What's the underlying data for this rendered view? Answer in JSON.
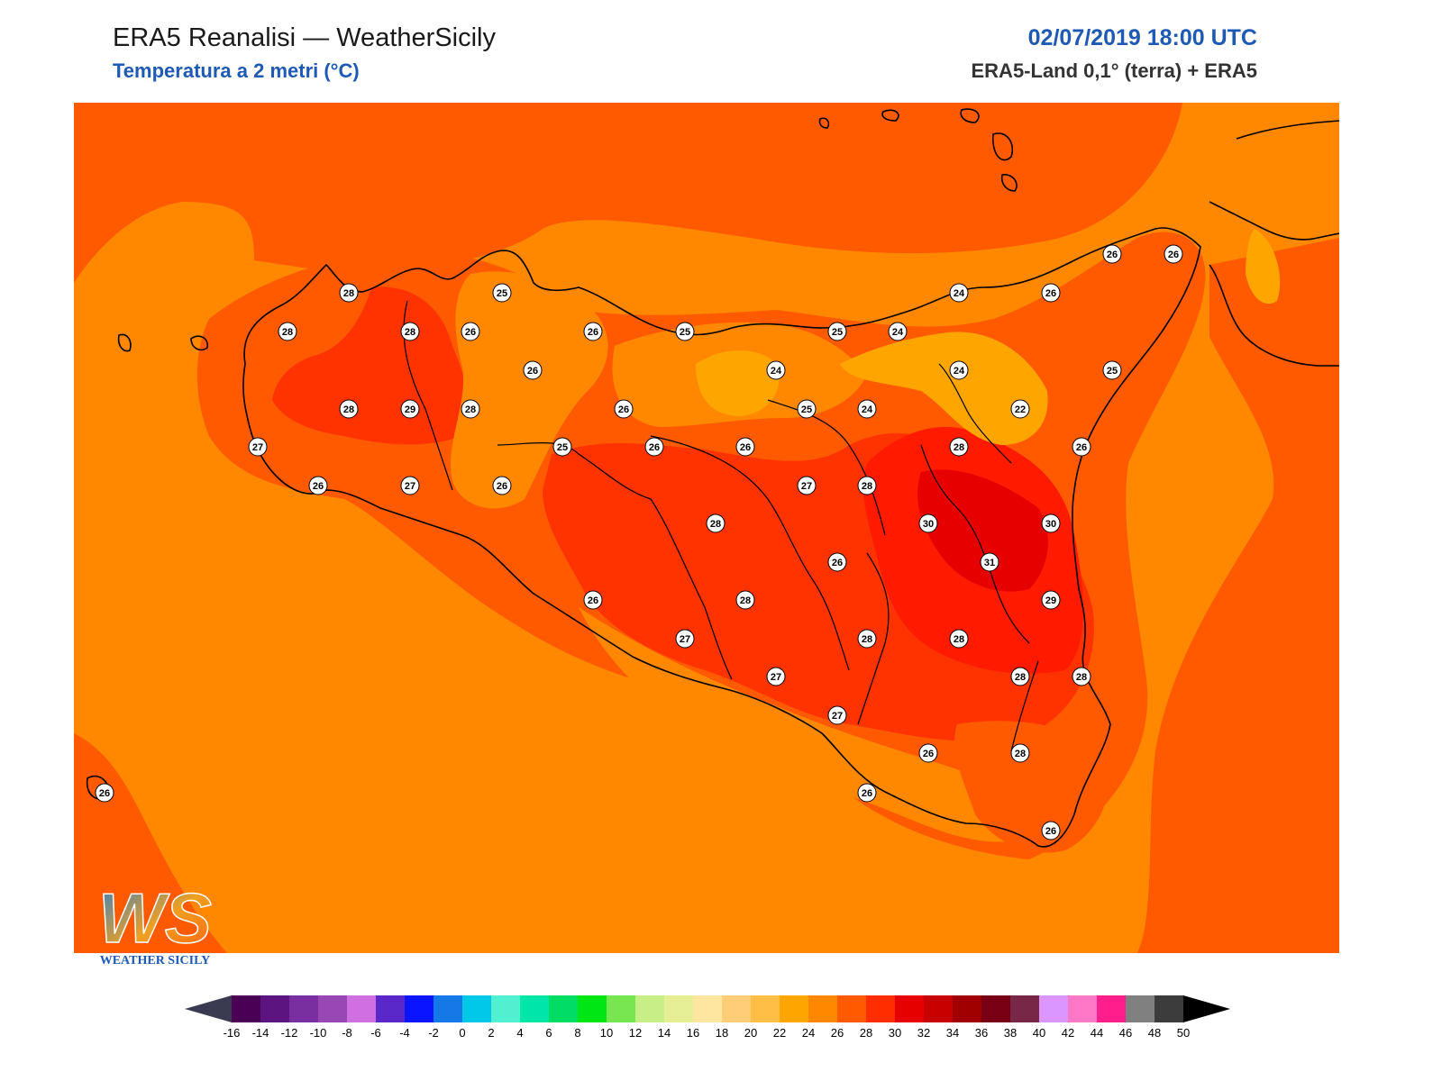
{
  "header": {
    "title": "ERA5 Reanalisi — WeatherSicily",
    "subtitle": "Temperatura a 2 metri (°C)",
    "datetime": "02/07/2019 18:00 UTC",
    "source": "ERA5-Land 0,1° (terra) + ERA5"
  },
  "logo": {
    "letters": "WS",
    "text": "WEATHER SICILY"
  },
  "colors": {
    "t22": "#ffa500",
    "t24": "#ff8800",
    "t26": "#ff5a00",
    "t28": "#ff3300",
    "t30": "#ff1a00",
    "t32": "#e60000",
    "coast": "#000000"
  },
  "stations": [
    {
      "v": "28"
    },
    {
      "v": "25"
    },
    {
      "v": "28"
    },
    {
      "v": "28"
    },
    {
      "v": "26"
    },
    {
      "v": "26"
    },
    {
      "v": "25"
    },
    {
      "v": "26"
    },
    {
      "v": "28"
    },
    {
      "v": "29"
    },
    {
      "v": "28"
    },
    {
      "v": "26"
    },
    {
      "v": "24"
    },
    {
      "v": "25"
    },
    {
      "v": "24"
    },
    {
      "v": "24"
    },
    {
      "v": "26"
    },
    {
      "v": "26"
    },
    {
      "v": "26"
    },
    {
      "v": "24"
    },
    {
      "v": "25"
    },
    {
      "v": "27"
    },
    {
      "v": "25"
    },
    {
      "v": "26"
    },
    {
      "v": "26"
    },
    {
      "v": "25"
    },
    {
      "v": "24"
    },
    {
      "v": "22"
    },
    {
      "v": "26"
    },
    {
      "v": "26"
    },
    {
      "v": "27"
    },
    {
      "v": "26"
    },
    {
      "v": "27"
    },
    {
      "v": "28"
    },
    {
      "v": "28"
    },
    {
      "v": "28"
    },
    {
      "v": "30"
    },
    {
      "v": "30"
    },
    {
      "v": "26"
    },
    {
      "v": "31"
    },
    {
      "v": "26"
    },
    {
      "v": "28"
    },
    {
      "v": "29"
    },
    {
      "v": "27"
    },
    {
      "v": "28"
    },
    {
      "v": "28"
    },
    {
      "v": "28"
    },
    {
      "v": "28"
    },
    {
      "v": "27"
    },
    {
      "v": "27"
    },
    {
      "v": "26"
    },
    {
      "v": "28"
    },
    {
      "v": "26"
    },
    {
      "v": "26"
    },
    {
      "v": "26"
    }
  ],
  "colorbar": {
    "ticks": [
      "-16",
      "-14",
      "-12",
      "-10",
      "-8",
      "-6",
      "-4",
      "-2",
      "0",
      "2",
      "4",
      "6",
      "8",
      "10",
      "12",
      "14",
      "16",
      "18",
      "20",
      "22",
      "24",
      "26",
      "28",
      "30",
      "32",
      "34",
      "36",
      "38",
      "40",
      "42",
      "44",
      "46",
      "48",
      "50"
    ],
    "colors": [
      "#4a0055",
      "#5c1480",
      "#7a2fa0",
      "#9848b4",
      "#d070e0",
      "#5a28c8",
      "#0a14ff",
      "#1478e6",
      "#00c8e6",
      "#50f0d0",
      "#00e6aa",
      "#00dc64",
      "#00e614",
      "#78e650",
      "#c8ee88",
      "#e6ee96",
      "#ffe6a0",
      "#ffcc78",
      "#ffbe46",
      "#ffa500",
      "#ff8800",
      "#ff5a00",
      "#ff2d00",
      "#e60000",
      "#c80000",
      "#a00000",
      "#780014",
      "#782846",
      "#dc96ff",
      "#ff78c8",
      "#ff1e8c",
      "#808080",
      "#3c3c3c"
    ],
    "under": "#3a3a50",
    "over": "#000000"
  }
}
